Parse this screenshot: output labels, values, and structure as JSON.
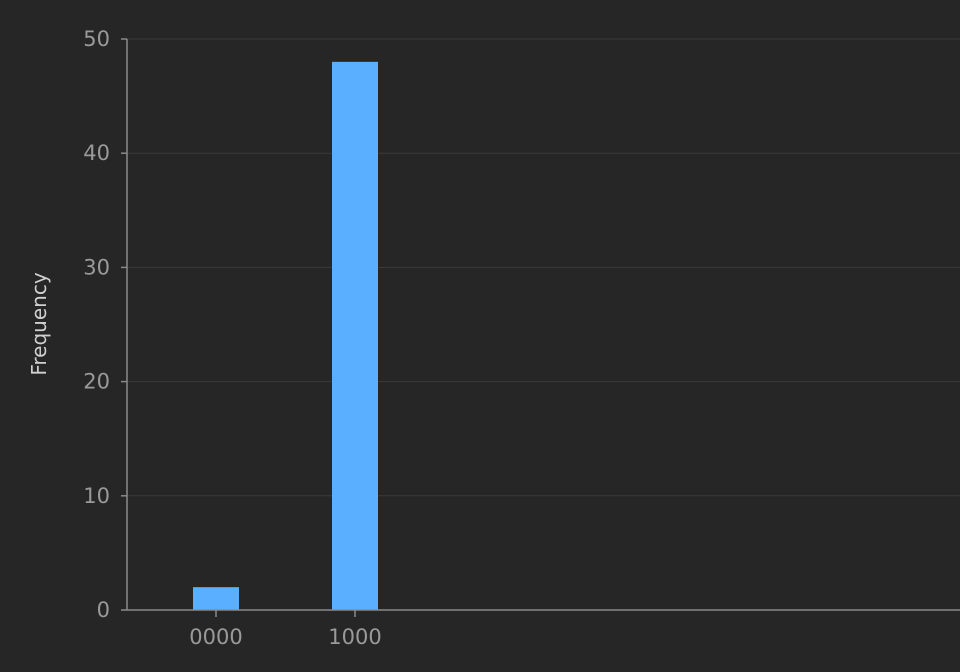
{
  "chart_data": {
    "type": "bar",
    "title": "",
    "xlabel": "",
    "ylabel": "Frequency",
    "categories": [
      "0000",
      "1000"
    ],
    "values": [
      2,
      48
    ],
    "ylim": [
      0,
      50
    ],
    "yticks": [
      0,
      10,
      20,
      30,
      40,
      50
    ],
    "grid": true,
    "legend": "none",
    "colors": {
      "background": "#262626",
      "bar": "#5aafff",
      "grid": "#3a3a3a",
      "axis": "#8a8a8a",
      "tick_label": "#9a9a9a",
      "axis_title": "#d0d0d0"
    }
  }
}
